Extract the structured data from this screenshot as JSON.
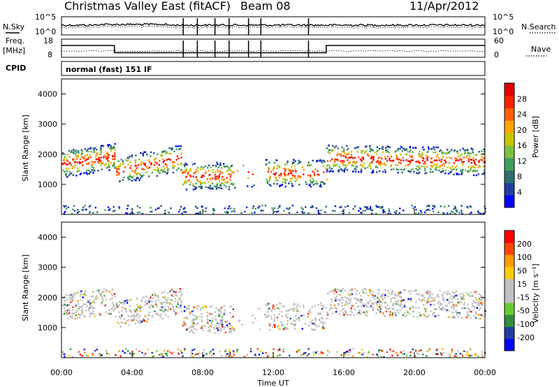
{
  "header": {
    "station": "Christmas Valley East (fitACF)",
    "beam": "Beam 08",
    "date": "11/Apr/2012"
  },
  "noise_panel": {
    "left_label": "N.Sky",
    "right_label": "N.Search",
    "left_ticks": [
      "10^5",
      "10^0"
    ],
    "right_ticks": [
      "10^5",
      "10^0"
    ]
  },
  "freq_panel": {
    "left_label_line1": "Freq.",
    "left_label_line2": "[MHz]",
    "right_label": "Nave",
    "left_ticks": [
      "18",
      "8"
    ],
    "right_ticks": [
      "60",
      "0"
    ]
  },
  "cpid": {
    "label": "CPID",
    "mode": "normal (fast) 151 IF"
  },
  "colors": {
    "power": [
      "#0000ff",
      "#1f3fa0",
      "#2f6f6f",
      "#3f9f5f",
      "#7fbf3f",
      "#c8c800",
      "#ffa500",
      "#ff6000",
      "#ff2000",
      "#e00000"
    ],
    "velocity": [
      "#0000ff",
      "#1f3fa0",
      "#2f8f3f",
      "#66cc33",
      "#c0c0c0",
      "#c0c0c0",
      "#ffcc00",
      "#ff9900",
      "#ff4400",
      "#ff0000"
    ],
    "ground_scatter": "#c0c0c0"
  },
  "chart_data": [
    {
      "type": "line",
      "name": "noise",
      "series": [
        {
          "name": "N.Sky",
          "style": "solid"
        },
        {
          "name": "N.Search",
          "style": "dotted"
        }
      ],
      "ylim": [
        "10^0",
        "10^5"
      ]
    },
    {
      "type": "line",
      "name": "frequency",
      "series": [
        {
          "name": "Freq. [MHz]",
          "style": "solid",
          "x": [
            "00:00",
            "03:00",
            "03:00",
            "15:00",
            "15:00",
            "24:00"
          ],
          "y": [
            14.5,
            14.5,
            10.5,
            10.5,
            14.5,
            14.5
          ]
        },
        {
          "name": "Nave",
          "style": "dotted"
        }
      ],
      "ylim": [
        8,
        18
      ]
    },
    {
      "type": "heatmap",
      "name": "power",
      "ylabel": "Slant Range [km]",
      "yticks": [
        "1000",
        "2000",
        "3000",
        "4000"
      ],
      "ylim": [
        0,
        4500
      ],
      "colorbar_label": "Power [dB]",
      "colorbar_ticks": [
        "4",
        "8",
        "12",
        "16",
        "20",
        "24",
        "28"
      ],
      "colorbar_range": [
        0,
        30
      ]
    },
    {
      "type": "heatmap",
      "name": "velocity",
      "xlabel": "Time UT",
      "ylabel": "Slant Range [km]",
      "xticks": [
        "00:00",
        "04:00",
        "08:00",
        "12:00",
        "16:00",
        "20:00",
        "00:00"
      ],
      "yticks": [
        "1000",
        "2000",
        "3000",
        "4000"
      ],
      "ylim": [
        0,
        4500
      ],
      "colorbar_label": "Velocity [m s⁻¹]",
      "colorbar_ticks": [
        "200",
        "100",
        "50",
        "15",
        "-15",
        "-50",
        "-100",
        "-200"
      ]
    }
  ]
}
